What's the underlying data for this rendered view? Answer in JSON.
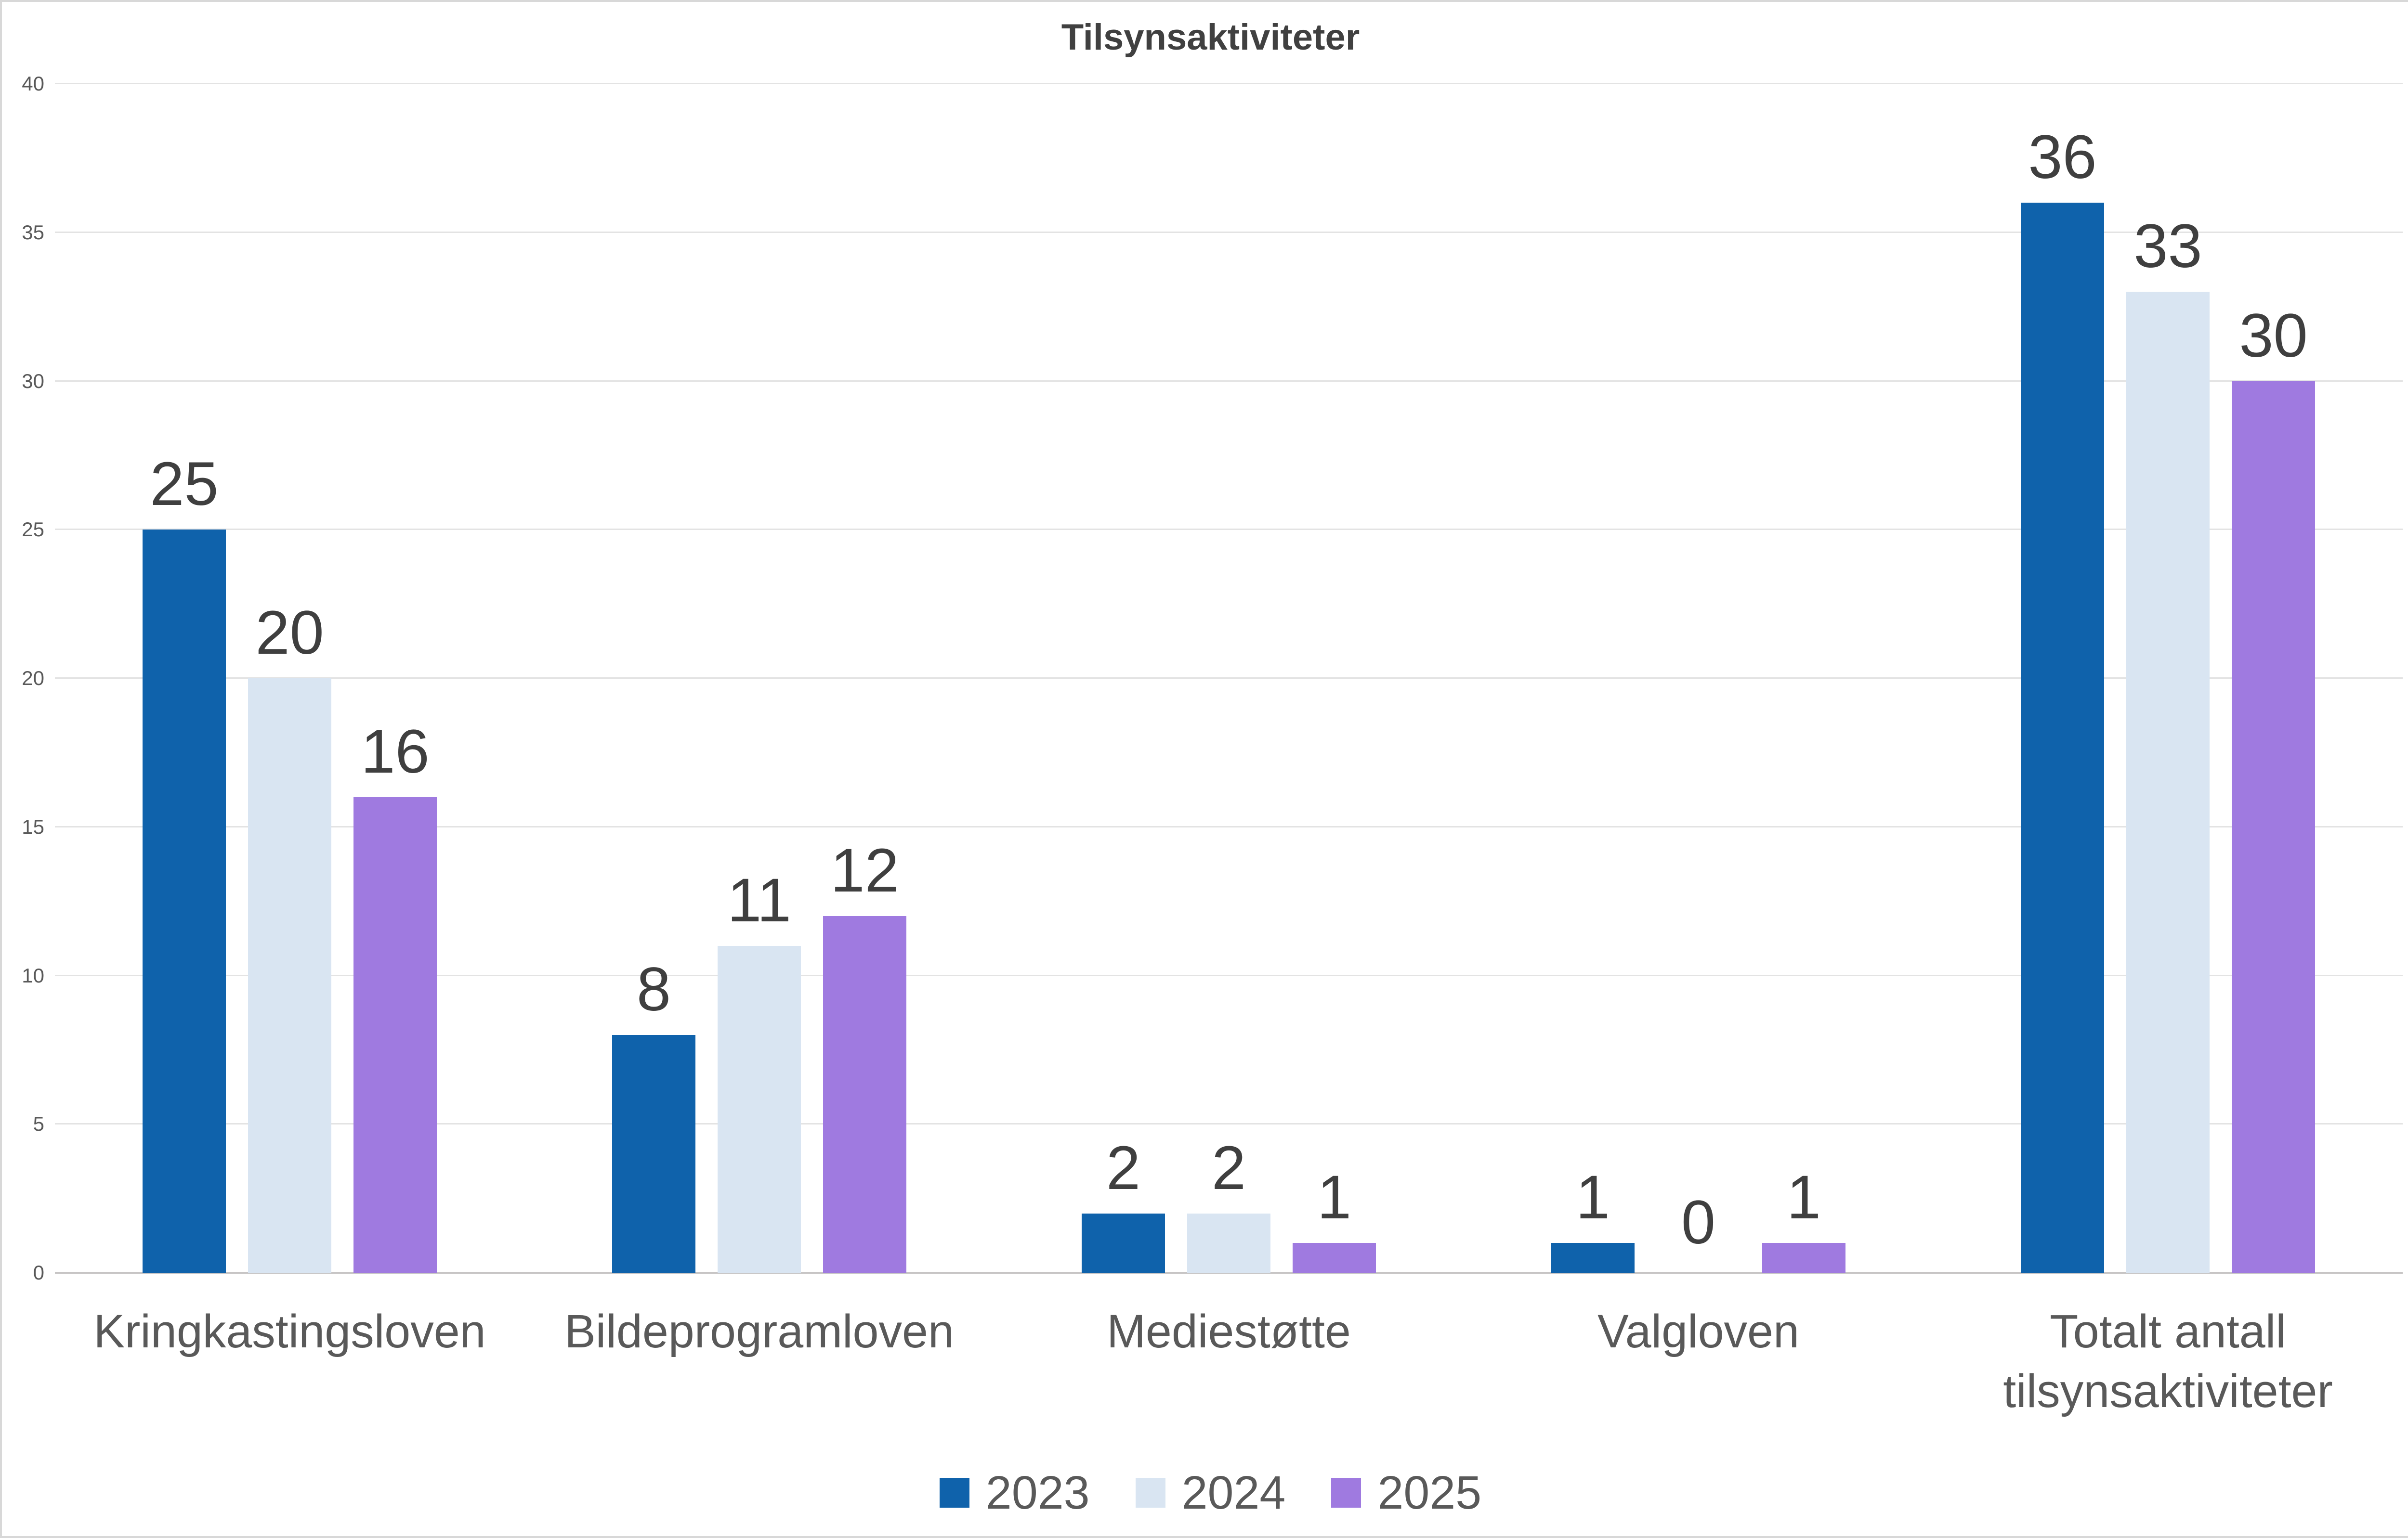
{
  "chart_data": {
    "type": "bar",
    "title": "Tilsynsaktiviteter",
    "categories": [
      "Kringkastingsloven",
      "Bildeprogramloven",
      "Mediestøtte",
      "Valgloven",
      "Totalt antall tilsynsaktiviteter"
    ],
    "series": [
      {
        "name": "2023",
        "color": "#0f62ab",
        "values": [
          25,
          8,
          2,
          1,
          36
        ]
      },
      {
        "name": "2024",
        "color": "#d9e5f2",
        "values": [
          20,
          11,
          2,
          0,
          33
        ]
      },
      {
        "name": "2025",
        "color": "#9f7ae0",
        "values": [
          16,
          12,
          1,
          1,
          30
        ]
      }
    ],
    "ylim": [
      0,
      40
    ],
    "yticks": [
      0,
      5,
      10,
      15,
      20,
      25,
      30,
      35,
      40
    ],
    "grid": true,
    "legend_position": "bottom",
    "data_labels": true
  },
  "style_colors": {
    "title": "#404040",
    "data_label": "#3f3f3f",
    "axis_text": "#595959",
    "gridline": "#e3e3e3",
    "baseline": "#c7c5c5",
    "frame_border": "#d8d8d8",
    "background": "#ffffff"
  }
}
